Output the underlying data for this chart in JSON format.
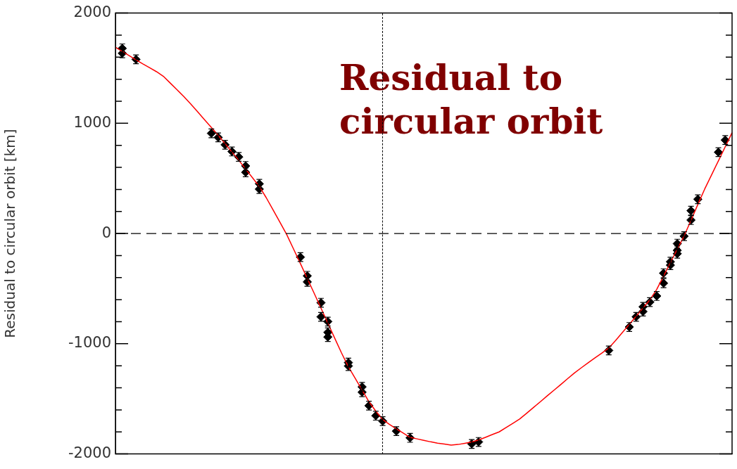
{
  "chart_data": {
    "type": "line",
    "ylabel": "Residual to circular orbit [km]",
    "annotations": [
      "Residual to circular orbit"
    ],
    "categories": [
      null,
      null,
      null,
      null,
      null,
      null,
      null,
      null,
      null,
      null,
      null,
      null,
      null,
      null,
      null,
      null,
      null,
      null,
      null,
      null,
      null,
      null,
      null,
      null,
      null,
      null,
      null,
      null,
      null,
      null,
      null,
      null,
      null,
      null,
      null,
      null,
      null,
      null,
      null,
      null,
      null,
      null,
      null,
      null,
      null,
      null,
      null,
      null,
      null,
      null,
      null,
      null,
      null,
      null,
      null,
      null,
      null,
      null,
      null,
      null,
      null,
      null,
      null,
      null,
      null,
      null,
      null,
      null,
      null,
      null,
      null,
      null,
      null,
      null,
      null,
      null,
      null,
      null,
      null,
      null,
      null,
      null,
      null,
      null,
      null,
      null,
      null,
      null,
      null,
      null,
      null
    ],
    "ylim": [
      -2000,
      2000
    ],
    "yticks": [
      -2000,
      {
        "value": -1800,
        "label": null
      },
      {
        "value": -1600,
        "label": null
      },
      {
        "value": -1400,
        "label": null
      },
      {
        "value": -1200,
        "label": null
      },
      -1000,
      {
        "value": -800,
        "label": null
      },
      {
        "value": -600,
        "label": null
      },
      {
        "value": -400,
        "label": null
      },
      {
        "value": -200,
        "label": null
      },
      0,
      {
        "value": 200,
        "label": null
      },
      {
        "value": 400,
        "label": null
      },
      {
        "value": 600,
        "label": null
      },
      {
        "value": 800,
        "label": null
      },
      1000,
      {
        "value": 1200,
        "label": null
      },
      {
        "value": 1400,
        "label": null
      },
      {
        "value": 1600,
        "label": null
      },
      {
        "value": 1800,
        "label": null
      },
      2000
    ],
    "ref_lines": [
      {
        "axis": "y",
        "value": 0,
        "line_style": "dashed",
        "color": "#000000"
      }
    ],
    "series": [
      {
        "color": "#ff0000",
        "marker": "none",
        "values": [
          1690,
          1652,
          1614,
          1576,
          1539,
          1504,
          1468,
          1426,
          1365,
          1304,
          1242,
          1175,
          1104,
          1033,
          963,
          890,
          815,
          740,
          665,
          585,
          506,
          427,
          326,
          215,
          103,
          -10,
          -141,
          -273,
          -408,
          -542,
          -677,
          -813,
          -949,
          -1084,
          -1209,
          -1315,
          -1420,
          -1526,
          -1612,
          -1687,
          -1732,
          -1772,
          -1811,
          -1850,
          -1863,
          -1876,
          -1890,
          -1902,
          -1910,
          -1919,
          -1914,
          -1903,
          -1891,
          -1873,
          -1849,
          -1824,
          -1800,
          -1761,
          -1722,
          -1683,
          -1632,
          -1579,
          -1527,
          -1474,
          -1422,
          -1370,
          -1317,
          -1265,
          -1218,
          -1173,
          -1128,
          -1084,
          -1039,
          -971,
          -897,
          -824,
          -750,
          -676,
          -602,
          -507,
          -386,
          -264,
          -143,
          -22,
          119,
          263,
          403,
          531,
          659,
          787,
          915
        ]
      },
      {
        "type": "scatter",
        "color": "#000000",
        "marker": "diamond",
        "values": [
          null,
          1680,
          null,
          1580,
          null,
          null,
          null,
          null,
          null,
          null,
          null,
          null,
          null,
          null,
          909,
          872,
          805,
          744,
          695,
          613,
          null,
          451,
          null,
          null,
          null,
          null,
          null,
          -214,
          -384,
          null,
          -628,
          -799,
          null,
          null,
          -1171,
          null,
          -1391,
          -1562,
          -1653,
          -1702,
          null,
          -1793,
          null,
          -1854,
          null,
          null,
          null,
          null,
          null,
          null,
          null,
          null,
          -1909,
          -1891,
          null,
          null,
          null,
          null,
          null,
          null,
          null,
          null,
          null,
          null,
          null,
          null,
          null,
          null,
          null,
          null,
          null,
          null,
          -1061,
          null,
          null,
          -848,
          -756,
          -708,
          -622,
          -567,
          -451,
          -287,
          -183,
          -24,
          122,
          311,
          null,
          null,
          738,
          848,
          null
        ],
        "errors": [
          null,
          40,
          null,
          40,
          null,
          null,
          null,
          null,
          null,
          null,
          null,
          null,
          null,
          null,
          40,
          40,
          40,
          40,
          40,
          40,
          null,
          40,
          null,
          null,
          null,
          null,
          null,
          40,
          40,
          null,
          40,
          40,
          null,
          null,
          40,
          null,
          40,
          40,
          40,
          40,
          null,
          40,
          null,
          40,
          null,
          null,
          null,
          null,
          null,
          null,
          null,
          null,
          40,
          40,
          null,
          null,
          null,
          null,
          null,
          null,
          null,
          null,
          null,
          null,
          null,
          null,
          null,
          null,
          null,
          null,
          null,
          null,
          40,
          null,
          null,
          40,
          40,
          40,
          40,
          40,
          40,
          40,
          40,
          40,
          40,
          40,
          null,
          null,
          40,
          40,
          null
        ]
      },
      {
        "type": "scatter",
        "color": "#000000",
        "marker": "diamond",
        "values": [
          null,
          1635,
          null,
          null,
          null,
          null,
          null,
          null,
          null,
          null,
          null,
          null,
          null,
          null,
          null,
          null,
          null,
          null,
          null,
          555,
          null,
          403,
          null,
          null,
          null,
          null,
          null,
          null,
          -439,
          null,
          -756,
          -897,
          null,
          null,
          -1202,
          null,
          -1440,
          null,
          null,
          null,
          null,
          null,
          null,
          null,
          null,
          null,
          null,
          null,
          null,
          null,
          null,
          null,
          null,
          null,
          null,
          null,
          null,
          null,
          null,
          null,
          null,
          null,
          null,
          null,
          null,
          null,
          null,
          null,
          null,
          null,
          null,
          null,
          null,
          null,
          null,
          null,
          null,
          -665,
          null,
          null,
          -360,
          -256,
          -153,
          null,
          207,
          null,
          null,
          null,
          null,
          null,
          null
        ],
        "errors": [
          null,
          40,
          null,
          null,
          null,
          null,
          null,
          null,
          null,
          null,
          null,
          null,
          null,
          null,
          null,
          null,
          null,
          null,
          null,
          40,
          null,
          40,
          null,
          null,
          null,
          null,
          null,
          null,
          40,
          null,
          40,
          40,
          null,
          null,
          40,
          null,
          40,
          null,
          null,
          null,
          null,
          null,
          null,
          null,
          null,
          null,
          null,
          null,
          null,
          null,
          null,
          null,
          null,
          null,
          null,
          null,
          null,
          null,
          null,
          null,
          null,
          null,
          null,
          null,
          null,
          null,
          null,
          null,
          null,
          null,
          null,
          null,
          null,
          null,
          null,
          null,
          null,
          40,
          null,
          null,
          40,
          40,
          40,
          null,
          40,
          null,
          null,
          null,
          null,
          null,
          null
        ]
      },
      {
        "type": "scatter",
        "color": "#000000",
        "marker": "diamond",
        "values": [
          null,
          null,
          null,
          null,
          null,
          null,
          null,
          null,
          null,
          null,
          null,
          null,
          null,
          null,
          null,
          null,
          null,
          null,
          null,
          null,
          null,
          null,
          null,
          null,
          null,
          null,
          null,
          null,
          null,
          null,
          null,
          -939,
          null,
          null,
          null,
          null,
          null,
          null,
          null,
          null,
          null,
          null,
          null,
          null,
          null,
          null,
          null,
          null,
          null,
          null,
          null,
          null,
          null,
          null,
          null,
          null,
          null,
          null,
          null,
          null,
          null,
          null,
          null,
          null,
          null,
          null,
          null,
          null,
          null,
          null,
          null,
          null,
          null,
          null,
          null,
          null,
          null,
          null,
          null,
          null,
          null,
          null,
          -92,
          null,
          null,
          null,
          null,
          null,
          null,
          null,
          null
        ],
        "errors": [
          null,
          null,
          null,
          null,
          null,
          null,
          null,
          null,
          null,
          null,
          null,
          null,
          null,
          null,
          null,
          null,
          null,
          null,
          null,
          null,
          null,
          null,
          null,
          null,
          null,
          null,
          null,
          null,
          null,
          null,
          null,
          40,
          null,
          null,
          null,
          null,
          null,
          null,
          null,
          null,
          null,
          null,
          null,
          null,
          null,
          null,
          null,
          null,
          null,
          null,
          null,
          null,
          null,
          null,
          null,
          null,
          null,
          null,
          null,
          null,
          null,
          null,
          null,
          null,
          null,
          null,
          null,
          null,
          null,
          null,
          null,
          null,
          null,
          null,
          null,
          null,
          null,
          null,
          null,
          null,
          null,
          null,
          40,
          null,
          null,
          null,
          null,
          null,
          null,
          null,
          null
        ]
      }
    ]
  }
}
